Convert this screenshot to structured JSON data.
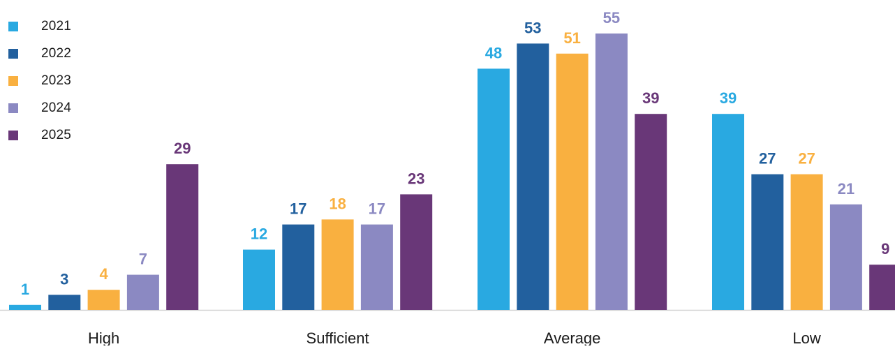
{
  "chart_data": {
    "type": "bar",
    "title": "",
    "xlabel": "",
    "ylabel": "",
    "categories": [
      "High",
      "Sufficient",
      "Average",
      "Low"
    ],
    "series": [
      {
        "name": "2021",
        "color": "#29a9e1",
        "values": [
          1,
          12,
          48,
          39
        ]
      },
      {
        "name": "2022",
        "color": "#22609e",
        "values": [
          3,
          17,
          53,
          27
        ]
      },
      {
        "name": "2023",
        "color": "#f9b040",
        "values": [
          4,
          18,
          51,
          27
        ]
      },
      {
        "name": "2024",
        "color": "#8b89c2",
        "values": [
          7,
          17,
          55,
          21
        ]
      },
      {
        "name": "2025",
        "color": "#693778",
        "values": [
          29,
          23,
          39,
          9
        ]
      }
    ],
    "ylim": [
      0,
      55
    ],
    "grid": false,
    "legend_position": "top-left",
    "data_labels": true
  }
}
